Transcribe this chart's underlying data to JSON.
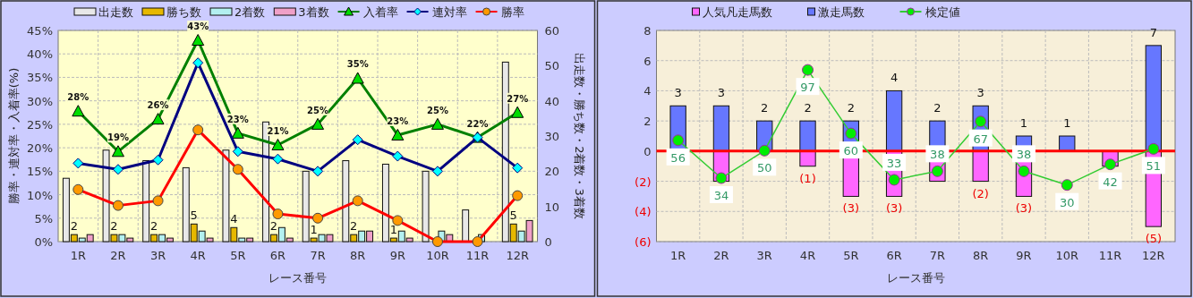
{
  "chart_data": [
    {
      "type": "bar",
      "xlabel": "レース番号",
      "ylabel": "勝率・連対率・入着率(%)",
      "y2label": "出走数・勝ち数・2着数・3着数",
      "categories": [
        "1R",
        "2R",
        "3R",
        "4R",
        "5R",
        "6R",
        "7R",
        "8R",
        "9R",
        "10R",
        "11R",
        "12R"
      ],
      "ylim": [
        0,
        45
      ],
      "yticks": [
        {
          "value": 0,
          "label": "0%"
        },
        {
          "value": 5,
          "label": "5%"
        },
        {
          "value": 10,
          "label": "10%"
        },
        {
          "value": 15,
          "label": "15%"
        },
        {
          "value": 20,
          "label": "20%"
        },
        {
          "value": 25,
          "label": "25%"
        },
        {
          "value": 30,
          "label": "30%"
        },
        {
          "value": 35,
          "label": "35%"
        },
        {
          "value": 40,
          "label": "40%"
        },
        {
          "value": 45,
          "label": "45%"
        }
      ],
      "y2lim": [
        0,
        60
      ],
      "y2ticks": [
        0,
        10,
        20,
        30,
        40,
        50,
        60
      ],
      "grid": true,
      "legend": "top",
      "series": [
        {
          "name": "出走数",
          "type": "bar",
          "axis": "y2",
          "color": "#e8e8e8",
          "values": [
            18,
            26,
            23,
            21,
            26,
            34,
            20,
            23,
            22,
            20,
            9,
            51
          ]
        },
        {
          "name": "勝ち数",
          "type": "bar",
          "axis": "y2",
          "color": "#e6b800",
          "values": [
            2,
            2,
            2,
            5,
            4,
            2,
            1,
            2,
            1,
            0,
            0,
            5
          ],
          "value_labels": [
            "2",
            "2",
            "2",
            "5",
            "4",
            "2",
            "1",
            "2",
            "1",
            null,
            null,
            "5"
          ]
        },
        {
          "name": "2着数",
          "type": "bar",
          "axis": "y2",
          "color": "#b3f0f0",
          "values": [
            1,
            2,
            2,
            3,
            1,
            4,
            2,
            3,
            3,
            3,
            2,
            3
          ]
        },
        {
          "name": "3着数",
          "type": "bar",
          "axis": "y2",
          "color": "#f0a0c8",
          "values": [
            2,
            1,
            1,
            1,
            1,
            1,
            2,
            3,
            1,
            2,
            0,
            6
          ]
        },
        {
          "name": "入着率",
          "type": "line",
          "color": "#008000",
          "marker": "triangle",
          "values": [
            27.8,
            19.2,
            26.1,
            42.9,
            23.1,
            20.6,
            25,
            34.8,
            22.7,
            25,
            22.2,
            27.5
          ],
          "value_labels": [
            "28%",
            "19%",
            "26%",
            "43%",
            "23%",
            "21%",
            "25%",
            "35%",
            "23%",
            "25%",
            "22%",
            "27%"
          ]
        },
        {
          "name": "連対率",
          "type": "line",
          "color": "#000080",
          "marker": "diamond",
          "values": [
            16.7,
            15.4,
            17.4,
            38.1,
            19.2,
            17.6,
            15,
            21.7,
            18.2,
            15,
            22.2,
            15.7
          ]
        },
        {
          "name": "勝率",
          "type": "line",
          "color": "#ff0000",
          "marker": "circle",
          "values": [
            11.1,
            7.7,
            8.7,
            23.8,
            15.4,
            5.9,
            5,
            8.7,
            4.5,
            0,
            0,
            9.8
          ]
        }
      ]
    },
    {
      "type": "bar",
      "xlabel": "レース番号",
      "categories": [
        "1R",
        "2R",
        "3R",
        "4R",
        "5R",
        "6R",
        "7R",
        "8R",
        "9R",
        "10R",
        "11R",
        "12R"
      ],
      "stacked": true,
      "ylim": [
        -6,
        8
      ],
      "yticks": [
        {
          "value": -6,
          "label": "(6)"
        },
        {
          "value": -4,
          "label": "(4)"
        },
        {
          "value": -2,
          "label": "(2)"
        },
        0,
        2,
        4,
        6,
        8
      ],
      "y2lim": [
        -3,
        120
      ],
      "grid": true,
      "legend": "top",
      "ref_lines": [
        {
          "axis": "y",
          "value": 0,
          "color": "#ff0000"
        }
      ],
      "series": [
        {
          "name": "人気凡走馬数",
          "type": "bar",
          "color": "#ff66ff",
          "values": [
            0,
            -2,
            0,
            -1,
            -3,
            -3,
            -2,
            -2,
            -3,
            0,
            -1,
            -5
          ],
          "value_labels": [
            null,
            null,
            null,
            "(1)",
            "(3)",
            "(3)",
            null,
            "(2)",
            "(3)",
            null,
            null,
            "(5)"
          ]
        },
        {
          "name": "激走馬数",
          "type": "bar",
          "color": "#6677ff",
          "values": [
            3,
            3,
            2,
            2,
            2,
            4,
            2,
            3,
            1,
            1,
            0,
            7
          ],
          "value_labels": [
            "3",
            "3",
            "2",
            "2",
            "2",
            "4",
            "2",
            "3",
            "1",
            "1",
            null,
            "7"
          ]
        },
        {
          "name": "検定値",
          "type": "line",
          "axis": "y2",
          "color": "#33cc33",
          "marker": "circle",
          "values": [
            56,
            34,
            50,
            97,
            60,
            33,
            38,
            67,
            38,
            30,
            42,
            51
          ],
          "value_labels": [
            "56",
            "34",
            "50",
            "97",
            "60",
            "33",
            "38",
            "67",
            "38",
            "30",
            "42",
            "51"
          ]
        }
      ]
    }
  ]
}
